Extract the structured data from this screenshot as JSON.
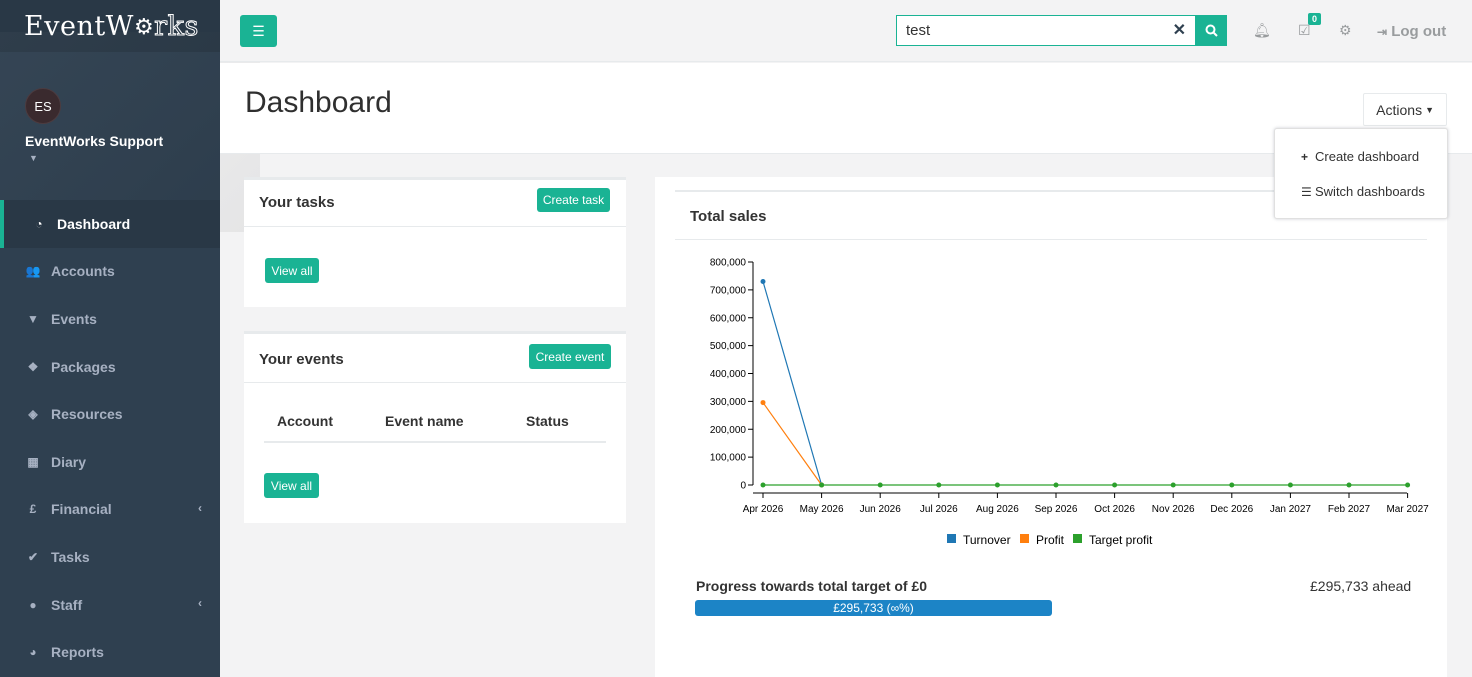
{
  "app": {
    "logo_text_part1": "EventW",
    "logo_text_part2": "rks",
    "logo_gear": "⚙"
  },
  "profile": {
    "initials": "ES",
    "name": "EventWorks Support"
  },
  "sidebar": {
    "items": [
      {
        "label": "Dashboard",
        "icon": "dashboard-icon"
      },
      {
        "label": "Accounts",
        "icon": "users-icon"
      },
      {
        "label": "Events",
        "icon": "filter-icon"
      },
      {
        "label": "Packages",
        "icon": "cubes-icon"
      },
      {
        "label": "Resources",
        "icon": "cube-icon"
      },
      {
        "label": "Diary",
        "icon": "calendar-icon"
      },
      {
        "label": "Financial",
        "icon": "pound-icon"
      },
      {
        "label": "Tasks",
        "icon": "check-icon"
      },
      {
        "label": "Staff",
        "icon": "user-icon"
      },
      {
        "label": "Reports",
        "icon": "pie-chart-icon"
      }
    ]
  },
  "topbar": {
    "search_value": "test",
    "task_badge": "0",
    "logout_label": "Log out"
  },
  "page": {
    "title": "Dashboard",
    "actions_label": "Actions",
    "dropdown": {
      "create": "Create dashboard",
      "switch": "Switch dashboards"
    }
  },
  "tasks_panel": {
    "title": "Your tasks",
    "create_label": "Create task",
    "view_all_label": "View all"
  },
  "events_panel": {
    "title": "Your events",
    "create_label": "Create event",
    "view_all_label": "View all",
    "columns": [
      "Account",
      "Event name",
      "Status"
    ]
  },
  "sales": {
    "title": "Total sales",
    "progress_label": "Progress towards total target of £0",
    "ahead_label": "£295,733 ahead",
    "progress_bar_text": "£295,733 (∞%)",
    "progress_fraction": 1.0
  },
  "chart_data": {
    "type": "line",
    "title": "",
    "categories": [
      "Apr 2026",
      "May 2026",
      "Jun 2026",
      "Jul 2026",
      "Aug 2026",
      "Sep 2026",
      "Oct 2026",
      "Nov 2026",
      "Dec 2026",
      "Jan 2027",
      "Feb 2027",
      "Mar 2027"
    ],
    "y_ticks": [
      "0",
      "100,000",
      "200,000",
      "300,000",
      "400,000",
      "500,000",
      "600,000",
      "700,000",
      "800,000"
    ],
    "ylim": [
      0,
      800000
    ],
    "grid": false,
    "legend_position": "bottom",
    "series": [
      {
        "name": "Turnover",
        "color": "#1f77b4",
        "values": [
          730000,
          0,
          null,
          null,
          null,
          null,
          null,
          null,
          null,
          null,
          null,
          null
        ]
      },
      {
        "name": "Profit",
        "color": "#ff7f0e",
        "values": [
          295733,
          0,
          null,
          null,
          null,
          null,
          null,
          null,
          null,
          null,
          null,
          null
        ]
      },
      {
        "name": "Target profit",
        "color": "#2ca02c",
        "values": [
          0,
          0,
          0,
          0,
          0,
          0,
          0,
          0,
          0,
          0,
          0,
          0
        ]
      }
    ]
  }
}
